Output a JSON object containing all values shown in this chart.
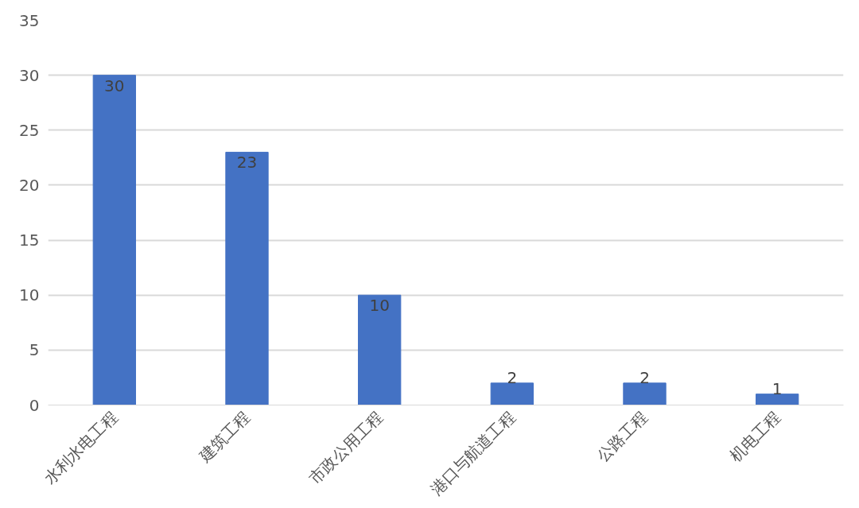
{
  "chart_data": {
    "type": "bar",
    "categories": [
      "水利水电工程",
      "建筑工程",
      "市政公用工程",
      "港口与航道工程",
      "公路工程",
      "机电工程"
    ],
    "values": [
      30,
      23,
      10,
      2,
      2,
      1
    ],
    "color": "#4472c4",
    "ylim": [
      0,
      35
    ],
    "yticks": [
      0,
      5,
      10,
      15,
      20,
      25,
      30,
      35
    ],
    "grid": "y",
    "data_labels": true
  }
}
